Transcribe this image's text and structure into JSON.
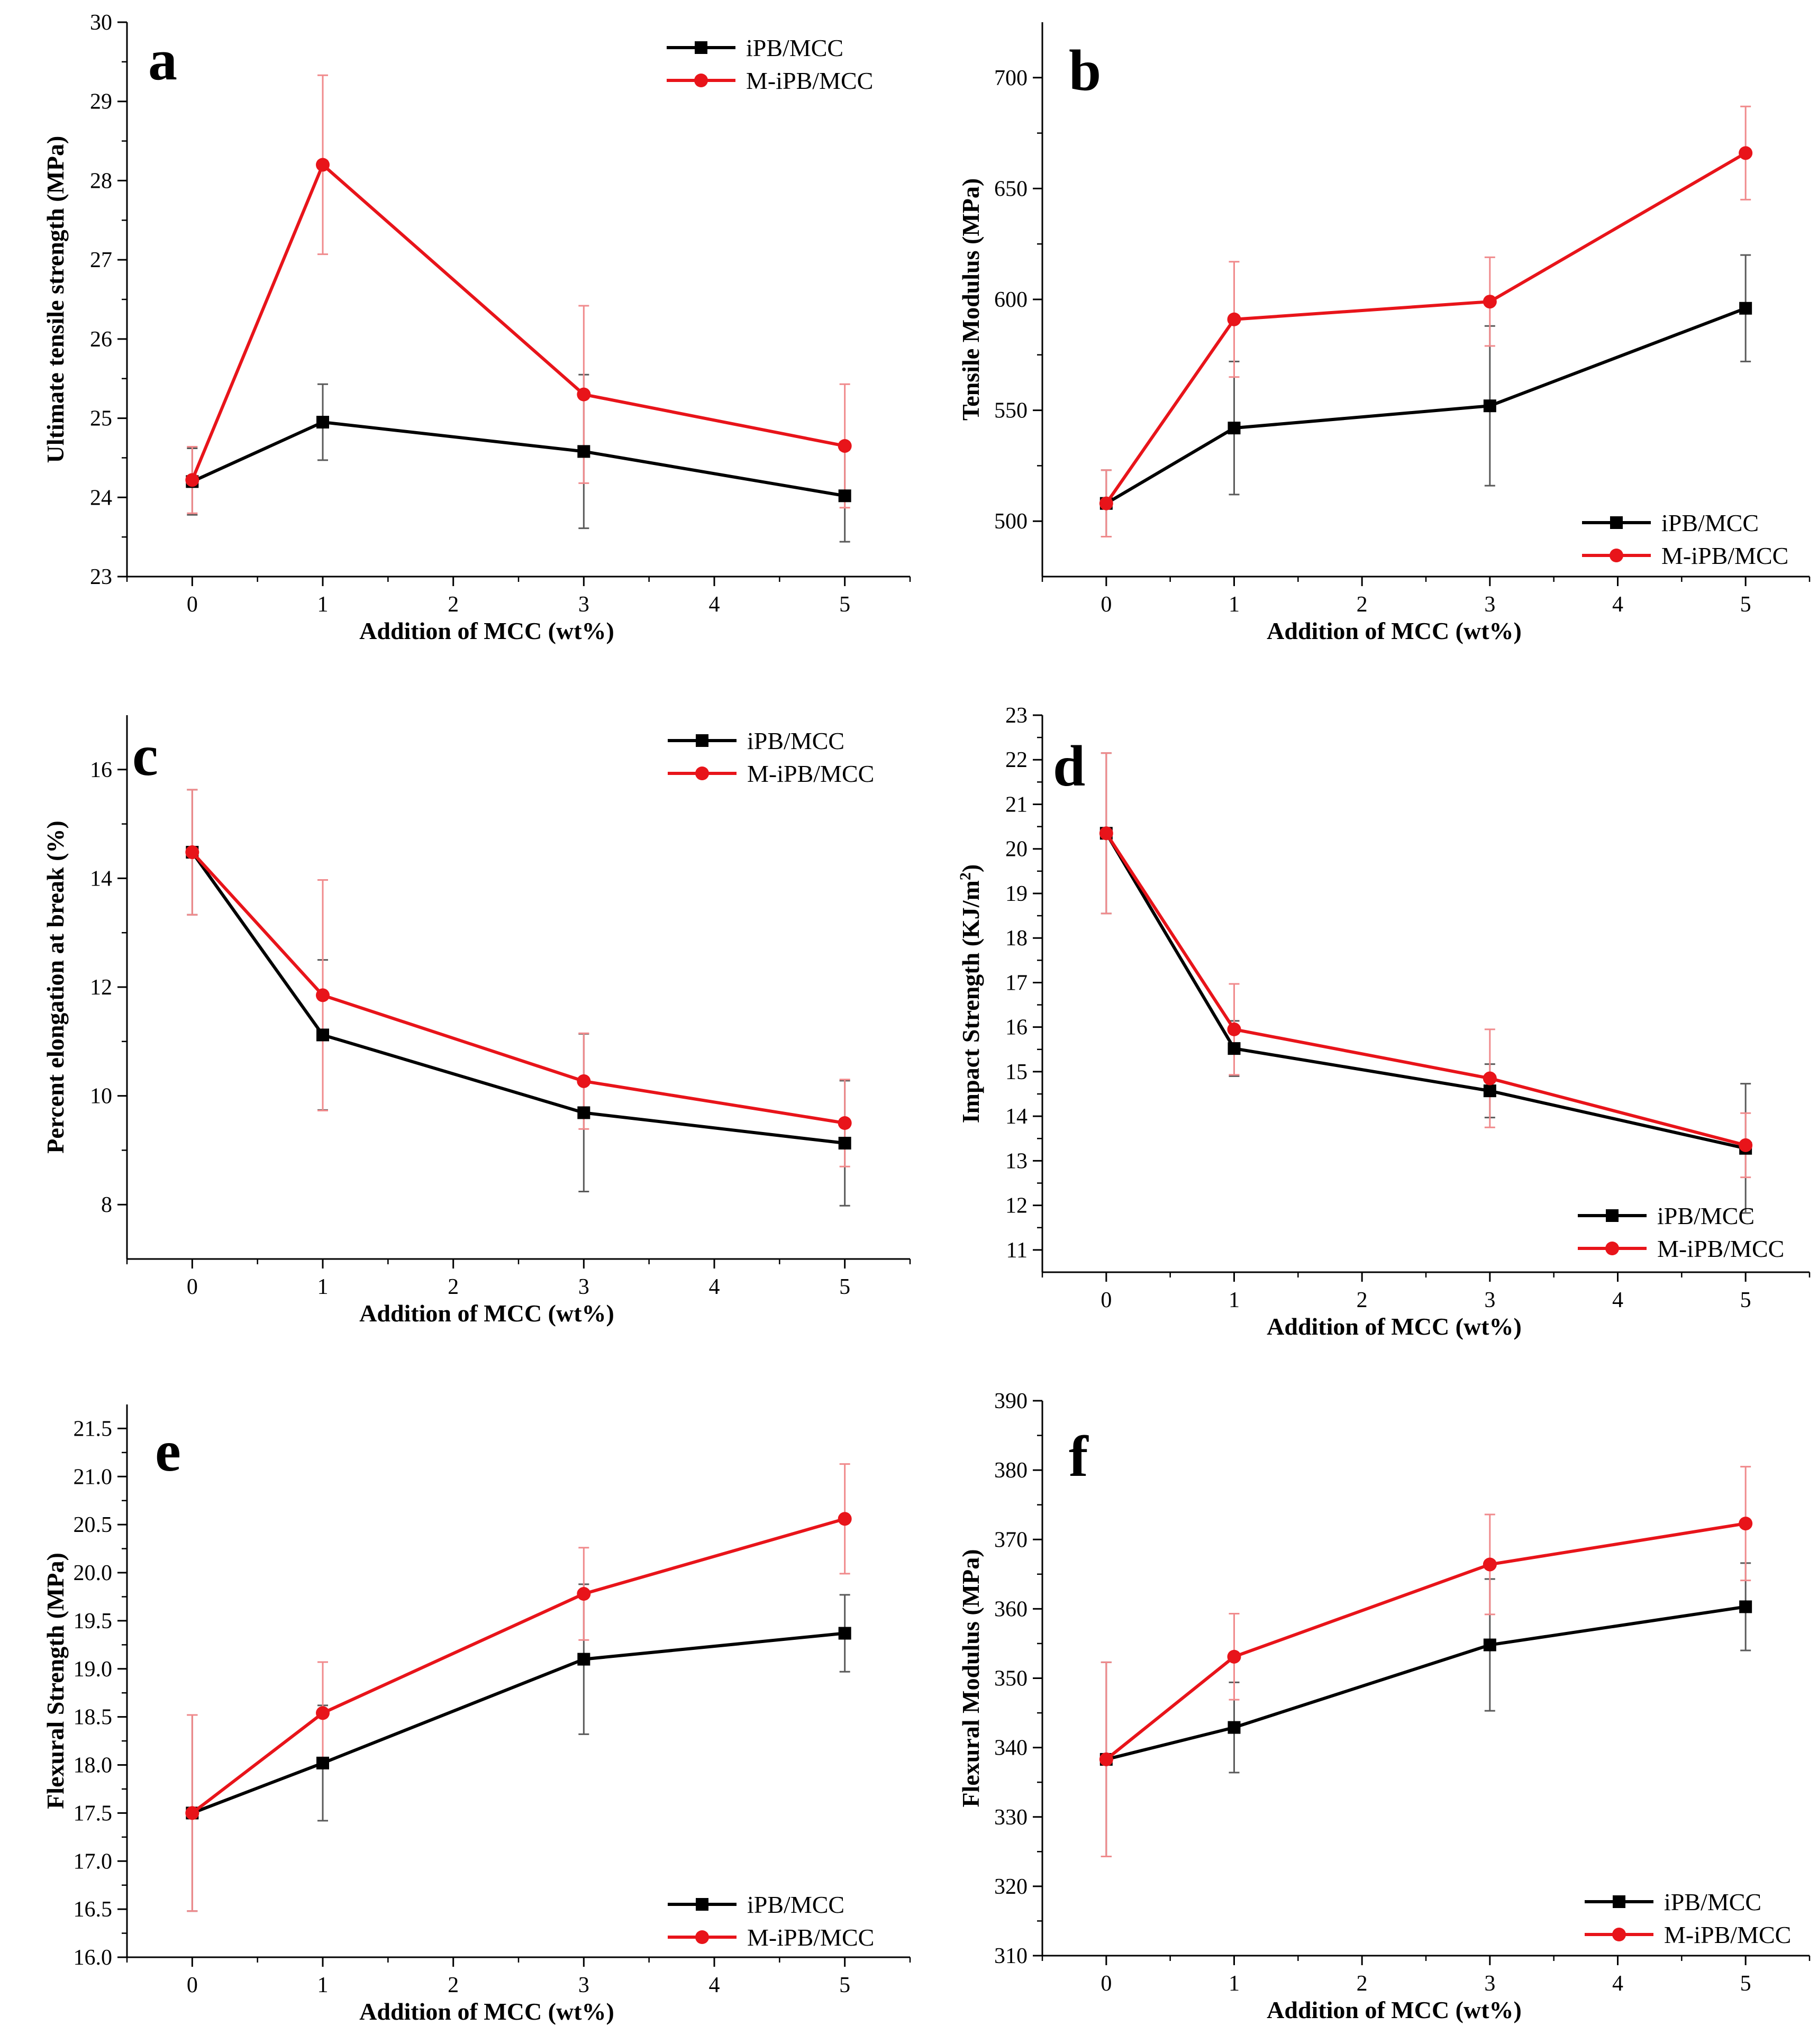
{
  "figure": {
    "colors": {
      "iPB/MCC": "#000000",
      "M-iPB/MCC": "#e8141a",
      "axis": "#000000"
    }
  },
  "chart_data": [
    {
      "type": "line",
      "panel": "a",
      "xlabel": "Addition of MCC (wt%)",
      "ylabel": "Ultimate tensile strength (MPa)",
      "x": [
        0,
        1,
        3,
        5
      ],
      "xlim": [
        -0.5,
        5.5
      ],
      "xticks": [
        0,
        1,
        2,
        3,
        4,
        5
      ],
      "ylim": [
        23,
        30
      ],
      "yticks": [
        23,
        24,
        25,
        26,
        27,
        28,
        29,
        30
      ],
      "legend": "top-right",
      "series": [
        {
          "name": "iPB/MCC",
          "marker": "square",
          "color": "#000000",
          "values": [
            24.2,
            24.95,
            24.58,
            24.02
          ],
          "errors": [
            0.42,
            0.48,
            0.97,
            0.58
          ]
        },
        {
          "name": "M-iPB/MCC",
          "marker": "circle",
          "color": "#e8141a",
          "values": [
            24.22,
            28.2,
            25.3,
            24.65
          ],
          "errors": [
            0.42,
            1.13,
            1.12,
            0.78
          ]
        }
      ]
    },
    {
      "type": "line",
      "panel": "b",
      "xlabel": "Addition of MCC (wt%)",
      "ylabel": "Tensile Modulus (MPa)",
      "x": [
        0,
        1,
        3,
        5
      ],
      "xlim": [
        -0.5,
        5.5
      ],
      "xticks": [
        0,
        1,
        2,
        3,
        4,
        5
      ],
      "ylim": [
        475,
        725
      ],
      "yticks": [
        500,
        550,
        600,
        650,
        700
      ],
      "legend": "bottom-right",
      "series": [
        {
          "name": "iPB/MCC",
          "marker": "square",
          "color": "#000000",
          "values": [
            508,
            542,
            552,
            596
          ],
          "errors": [
            15,
            30,
            36,
            24
          ]
        },
        {
          "name": "M-iPB/MCC",
          "marker": "circle",
          "color": "#e8141a",
          "values": [
            508,
            591,
            599,
            666
          ],
          "errors": [
            15,
            26,
            20,
            21
          ]
        }
      ]
    },
    {
      "type": "line",
      "panel": "c",
      "xlabel": "Addition of MCC (wt%)",
      "ylabel": "Percent elongation at break (%)",
      "x": [
        0,
        1,
        3,
        5
      ],
      "xlim": [
        -0.5,
        5.5
      ],
      "xticks": [
        0,
        1,
        2,
        3,
        4,
        5
      ],
      "ylim": [
        7,
        17
      ],
      "yticks": [
        8,
        10,
        12,
        14,
        16
      ],
      "legend": "top-right",
      "series": [
        {
          "name": "iPB/MCC",
          "marker": "square",
          "color": "#000000",
          "values": [
            14.48,
            11.12,
            9.69,
            9.13
          ],
          "errors": [
            1.15,
            1.38,
            1.45,
            1.15
          ]
        },
        {
          "name": "M-iPB/MCC",
          "marker": "circle",
          "color": "#e8141a",
          "values": [
            14.48,
            11.85,
            10.27,
            9.5
          ],
          "errors": [
            1.15,
            2.12,
            0.88,
            0.8
          ]
        }
      ]
    },
    {
      "type": "line",
      "panel": "d",
      "xlabel": "Addition of MCC (wt%)",
      "ylabel": "Impact Strength (KJ/m",
      "ylabel_superscript": "2",
      "ylabel_close": ")",
      "x": [
        0,
        1,
        3,
        5
      ],
      "xlim": [
        -0.5,
        5.5
      ],
      "xticks": [
        0,
        1,
        2,
        3,
        4,
        5
      ],
      "ylim": [
        10.5,
        23
      ],
      "yticks": [
        11,
        12,
        13,
        14,
        15,
        16,
        17,
        18,
        19,
        20,
        21,
        22,
        23
      ],
      "legend": "bottom-right",
      "series": [
        {
          "name": "iPB/MCC",
          "marker": "square",
          "color": "#000000",
          "values": [
            20.35,
            15.52,
            14.57,
            13.28
          ],
          "errors": [
            1.8,
            0.62,
            0.6,
            1.45
          ]
        },
        {
          "name": "M-iPB/MCC",
          "marker": "circle",
          "color": "#e8141a",
          "values": [
            20.35,
            15.95,
            14.85,
            13.35
          ],
          "errors": [
            1.8,
            1.02,
            1.1,
            0.72
          ]
        }
      ]
    },
    {
      "type": "line",
      "panel": "e",
      "xlabel": "Addition of MCC (wt%)",
      "ylabel": "Flexural Strength (MPa)",
      "x": [
        0,
        1,
        3,
        5
      ],
      "xlim": [
        -0.5,
        5.5
      ],
      "xticks": [
        0,
        1,
        2,
        3,
        4,
        5
      ],
      "ylim": [
        16,
        21.75
      ],
      "yticks": [
        "16.0",
        "16.5",
        "17.0",
        "17.5",
        "18.0",
        "18.5",
        "19.0",
        "19.5",
        "20.0",
        "20.5",
        "21.0",
        "21.5"
      ],
      "legend": "bottom-right",
      "series": [
        {
          "name": "iPB/MCC",
          "marker": "square",
          "color": "#000000",
          "values": [
            17.5,
            18.02,
            19.1,
            19.37
          ],
          "errors": [
            1.02,
            0.6,
            0.78,
            0.4
          ]
        },
        {
          "name": "M-iPB/MCC",
          "marker": "circle",
          "color": "#e8141a",
          "values": [
            17.5,
            18.54,
            19.78,
            20.56
          ],
          "errors": [
            1.02,
            0.53,
            0.48,
            0.57
          ]
        }
      ]
    },
    {
      "type": "line",
      "panel": "f",
      "xlabel": "Addition of MCC (wt%)",
      "ylabel": "Flexural Modulus (MPa)",
      "x": [
        0,
        1,
        3,
        5
      ],
      "xlim": [
        -0.5,
        5.5
      ],
      "xticks": [
        0,
        1,
        2,
        3,
        4,
        5
      ],
      "ylim": [
        310,
        390
      ],
      "yticks": [
        310,
        320,
        330,
        340,
        350,
        360,
        370,
        380,
        390
      ],
      "legend": "bottom-right",
      "series": [
        {
          "name": "iPB/MCC",
          "marker": "square",
          "color": "#000000",
          "values": [
            338.3,
            342.9,
            354.8,
            360.3
          ],
          "errors": [
            14,
            6.5,
            9.5,
            6.3
          ]
        },
        {
          "name": "M-iPB/MCC",
          "marker": "circle",
          "color": "#e8141a",
          "values": [
            338.3,
            353.1,
            366.4,
            372.3
          ],
          "errors": [
            14,
            6.2,
            7.2,
            8.2
          ]
        }
      ]
    }
  ]
}
